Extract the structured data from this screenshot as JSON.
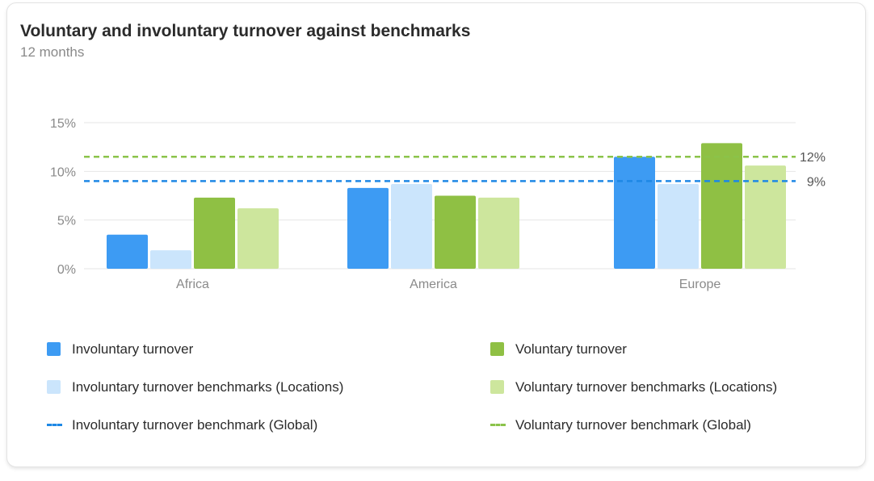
{
  "card": {
    "title": "Voluntary and involuntary turnover against benchmarks",
    "subtitle": "12 months"
  },
  "colors": {
    "involuntary": "#3d9bf3",
    "involuntary_bench": "#cbe5fc",
    "voluntary": "#8fc044",
    "voluntary_bench": "#cde69d",
    "involuntary_global": "#1e88e5",
    "voluntary_global": "#8bc34a",
    "gridline": "#e6e6e6",
    "axis_text": "#8a8a8a",
    "ref_text": "#555555"
  },
  "chart_data": {
    "type": "bar",
    "categories": [
      "Africa",
      "America",
      "Europe"
    ],
    "series": [
      {
        "name": "Involuntary turnover",
        "color_key": "involuntary",
        "values": [
          3.5,
          8.3,
          11.5
        ]
      },
      {
        "name": "Involuntary turnover benchmarks (Locations)",
        "color_key": "involuntary_bench",
        "values": [
          1.9,
          8.7,
          8.7
        ]
      },
      {
        "name": "Voluntary turnover",
        "color_key": "voluntary",
        "values": [
          7.3,
          7.5,
          12.9
        ]
      },
      {
        "name": "Voluntary turnover benchmarks (Locations)",
        "color_key": "voluntary_bench",
        "values": [
          6.2,
          7.3,
          10.6
        ]
      }
    ],
    "reference_lines": [
      {
        "name": "Involuntary turnover benchmark (Global)",
        "value": 9,
        "label": "9%",
        "color_key": "involuntary_global"
      },
      {
        "name": "Voluntary turnover benchmark (Global)",
        "value": 11.5,
        "label": "12%",
        "color_key": "voluntary_global"
      }
    ],
    "y_ticks": [
      {
        "value": 0,
        "label": "0%"
      },
      {
        "value": 5,
        "label": "5%"
      },
      {
        "value": 10,
        "label": "10%"
      },
      {
        "value": 15,
        "label": "15%"
      }
    ],
    "ylim": [
      0,
      15
    ],
    "grid": true,
    "legend_position": "bottom"
  },
  "legend": {
    "items": [
      {
        "label": "Involuntary turnover",
        "kind": "swatch",
        "color_key": "involuntary"
      },
      {
        "label": "Voluntary turnover",
        "kind": "swatch",
        "color_key": "voluntary"
      },
      {
        "label": "Involuntary turnover benchmarks (Locations)",
        "kind": "swatch",
        "color_key": "involuntary_bench"
      },
      {
        "label": "Voluntary turnover benchmarks (Locations)",
        "kind": "swatch",
        "color_key": "voluntary_bench"
      },
      {
        "label": "Involuntary turnover benchmark (Global)",
        "kind": "dash",
        "color_key": "involuntary_global"
      },
      {
        "label": "Voluntary turnover benchmark (Global)",
        "kind": "dash",
        "color_key": "voluntary_global"
      }
    ]
  }
}
